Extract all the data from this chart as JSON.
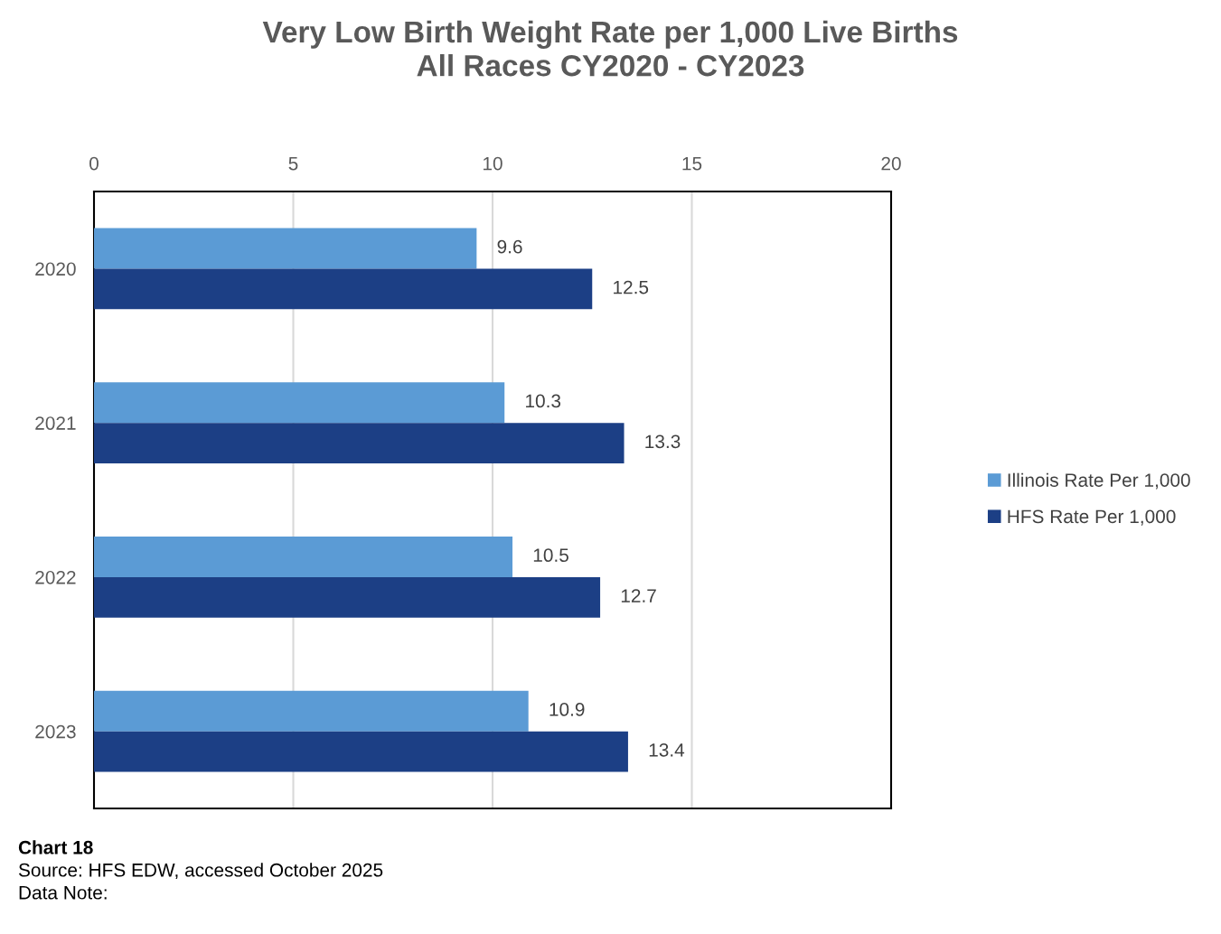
{
  "chart_data": {
    "type": "bar",
    "orientation": "horizontal",
    "title": "Very Low Birth Weight Rate per 1,000 Live Births\nAll Races CY2020 - CY2023",
    "categories": [
      "2020",
      "2021",
      "2022",
      "2023"
    ],
    "series": [
      {
        "name": "Illinois Rate Per 1,000",
        "color": "#5b9bd5",
        "values": [
          9.6,
          10.3,
          10.5,
          10.9
        ]
      },
      {
        "name": "HFS Rate Per 1,000",
        "color": "#1c3f85",
        "values": [
          12.5,
          13.3,
          12.7,
          13.4
        ]
      }
    ],
    "xlim": [
      0,
      20
    ],
    "xticks": [
      0,
      5,
      10,
      15,
      20
    ],
    "grid": "x",
    "legend": "right",
    "data_labels": true,
    "annotations": [
      "Chart 18",
      "Source: HFS EDW, accessed October 2025",
      "Data Note:"
    ]
  }
}
